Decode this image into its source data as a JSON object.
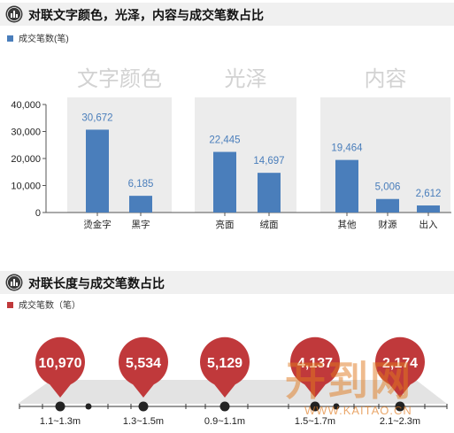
{
  "section1": {
    "title": "对联文字颜色，光泽，内容与成交笔数占比",
    "legend_label": "成交笔数(笔)",
    "bar_color": "#4a7ebb"
  },
  "section2": {
    "title": "对联长度与成交笔数占比",
    "legend_label": "成交笔数（笔）",
    "marker_color": "#c0393b"
  },
  "watermark": {
    "logo_text": "开到网",
    "url": "WWW.KAITAO.CN"
  },
  "chart_data": [
    {
      "type": "bar",
      "groups": [
        {
          "label": "文字颜色",
          "categories": [
            "烫金字",
            "黑字"
          ],
          "values": [
            30672,
            6185
          ],
          "value_labels": [
            "30,672",
            "6,185"
          ]
        },
        {
          "label": "光泽",
          "categories": [
            "亮面",
            "绒面"
          ],
          "values": [
            22445,
            14697
          ],
          "value_labels": [
            "22,445",
            "14,697"
          ]
        },
        {
          "label": "内容",
          "categories": [
            "其他",
            "财源",
            "出入"
          ],
          "values": [
            19464,
            5006,
            2612
          ],
          "value_labels": [
            "19,464",
            "5,006",
            "2,612"
          ]
        }
      ],
      "yticks": [
        "40,000",
        "30,000",
        "20,000",
        "10,000",
        "0"
      ],
      "ytick_values": [
        40000,
        30000,
        20000,
        10000,
        0
      ],
      "ylim": [
        0,
        40000
      ],
      "series": [
        {
          "name": "成交笔数(笔)"
        }
      ],
      "legend": "top-left",
      "grid": false
    },
    {
      "type": "scatter",
      "categories": [
        "1.1~1.3m",
        "1.3~1.5m",
        "0.9~1.1m",
        "1.5~1.7m",
        "2.1~2.3m"
      ],
      "values": [
        10970,
        5534,
        5129,
        4137,
        2174
      ],
      "value_labels": [
        "10,970",
        "5,534",
        "5,129",
        "4,137",
        "2,174"
      ],
      "series": [
        {
          "name": "成交笔数（笔）"
        }
      ],
      "legend": "top-left"
    }
  ]
}
